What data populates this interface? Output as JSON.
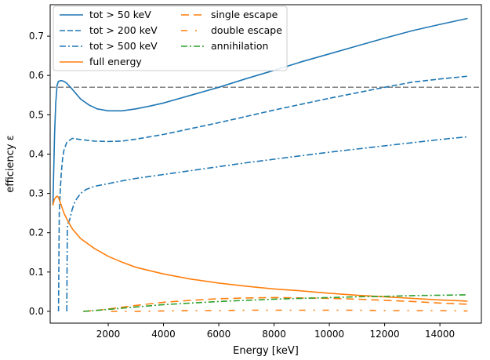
{
  "chart_data": {
    "type": "line",
    "title": "",
    "xlabel": "Energy [keV]",
    "ylabel": "efficiency ε",
    "xlim": [
      -100,
      15500
    ],
    "ylim": [
      -0.03,
      0.78
    ],
    "xticks": [
      2000,
      4000,
      6000,
      8000,
      10000,
      12000,
      14000
    ],
    "xtick_labels": [
      "2000",
      "4000",
      "6000",
      "8000",
      "10000",
      "12000",
      "14000"
    ],
    "yticks": [
      0.0,
      0.1,
      0.2,
      0.3,
      0.4,
      0.5,
      0.6,
      0.7
    ],
    "ytick_labels": [
      "0.0",
      "0.1",
      "0.2",
      "0.3",
      "0.4",
      "0.5",
      "0.6",
      "0.7"
    ],
    "grid": false,
    "legend_placement": "upper-left, two columns",
    "reference_line": {
      "y": 0.57,
      "color": "#808080",
      "style": "dashed"
    },
    "series": [
      {
        "name": "tot > 50 keV",
        "color": "#1f77b4",
        "dash": "solid",
        "x": [
          0,
          60,
          100,
          150,
          200,
          300,
          400,
          500,
          700,
          1000,
          1300,
          1600,
          2000,
          2500,
          3000,
          3500,
          4000,
          5000,
          6000,
          7000,
          8000,
          9000,
          10000,
          11000,
          12000,
          13000,
          14000,
          15000
        ],
        "y": [
          0.27,
          0.45,
          0.53,
          0.575,
          0.585,
          0.587,
          0.585,
          0.58,
          0.565,
          0.54,
          0.525,
          0.515,
          0.51,
          0.51,
          0.515,
          0.522,
          0.53,
          0.55,
          0.57,
          0.592,
          0.613,
          0.635,
          0.655,
          0.675,
          0.695,
          0.714,
          0.73,
          0.745
        ]
      },
      {
        "name": "tot > 200 keV",
        "color": "#1f77b4",
        "dash": "dashed",
        "x": [
          200,
          230,
          260,
          300,
          350,
          400,
          500,
          700,
          1000,
          1500,
          2000,
          2500,
          3000,
          3500,
          4000,
          5000,
          6000,
          7000,
          8000,
          9000,
          10000,
          11000,
          12000,
          13000,
          14000,
          15000
        ],
        "y": [
          0.0,
          0.25,
          0.3,
          0.35,
          0.39,
          0.41,
          0.43,
          0.44,
          0.437,
          0.433,
          0.432,
          0.433,
          0.438,
          0.444,
          0.45,
          0.465,
          0.48,
          0.496,
          0.512,
          0.527,
          0.542,
          0.556,
          0.57,
          0.583,
          0.591,
          0.598
        ]
      },
      {
        "name": "tot > 500 keV",
        "color": "#1f77b4",
        "dash": "dashdot",
        "x": [
          500,
          520,
          550,
          600,
          700,
          800,
          1000,
          1200,
          1500,
          2000,
          2500,
          3000,
          4000,
          5000,
          6000,
          7000,
          8000,
          9000,
          10000,
          11000,
          12000,
          13000,
          14000,
          15000
        ],
        "y": [
          0.0,
          0.22,
          0.225,
          0.232,
          0.26,
          0.28,
          0.3,
          0.31,
          0.318,
          0.325,
          0.332,
          0.338,
          0.348,
          0.358,
          0.368,
          0.378,
          0.387,
          0.396,
          0.405,
          0.413,
          0.421,
          0.429,
          0.437,
          0.444
        ]
      },
      {
        "name": "full energy",
        "color": "#ff7f0e",
        "dash": "solid",
        "x": [
          0,
          50,
          100,
          150,
          200,
          250,
          300,
          400,
          500,
          700,
          1000,
          1500,
          2000,
          2500,
          3000,
          4000,
          5000,
          6000,
          7000,
          8000,
          9000,
          10000,
          11000,
          12000,
          13000,
          14000,
          15000
        ],
        "y": [
          0.27,
          0.285,
          0.29,
          0.293,
          0.29,
          0.28,
          0.27,
          0.25,
          0.235,
          0.21,
          0.185,
          0.16,
          0.14,
          0.125,
          0.112,
          0.095,
          0.082,
          0.072,
          0.064,
          0.057,
          0.052,
          0.046,
          0.041,
          0.037,
          0.033,
          0.029,
          0.026
        ]
      },
      {
        "name": "single escape",
        "color": "#ff7f0e",
        "dash": "longdash",
        "x": [
          1100,
          1500,
          2000,
          3000,
          4000,
          5000,
          6000,
          7000,
          8000,
          9000,
          10000,
          11000,
          12000,
          13000,
          14000,
          15000
        ],
        "y": [
          0.0,
          0.002,
          0.006,
          0.015,
          0.023,
          0.028,
          0.032,
          0.034,
          0.035,
          0.034,
          0.033,
          0.031,
          0.028,
          0.025,
          0.021,
          0.018
        ]
      },
      {
        "name": "double escape",
        "color": "#ff7f0e",
        "dash": "dashdotsparse",
        "x": [
          2100,
          3000,
          4000,
          5000,
          6000,
          7000,
          8000,
          9000,
          10000,
          11000,
          12000,
          13000,
          14000,
          15000
        ],
        "y": [
          0.0,
          0.0,
          0.001,
          0.002,
          0.002,
          0.003,
          0.003,
          0.003,
          0.003,
          0.003,
          0.002,
          0.002,
          0.002,
          0.001
        ]
      },
      {
        "name": "annihilation",
        "color": "#2ca02c",
        "dash": "dashdot",
        "x": [
          1100,
          1500,
          2000,
          3000,
          4000,
          5000,
          6000,
          7000,
          8000,
          9000,
          10000,
          11000,
          12000,
          13000,
          14000,
          15000
        ],
        "y": [
          0.0,
          0.002,
          0.005,
          0.011,
          0.017,
          0.021,
          0.025,
          0.028,
          0.031,
          0.033,
          0.035,
          0.037,
          0.038,
          0.04,
          0.041,
          0.042
        ]
      }
    ]
  }
}
